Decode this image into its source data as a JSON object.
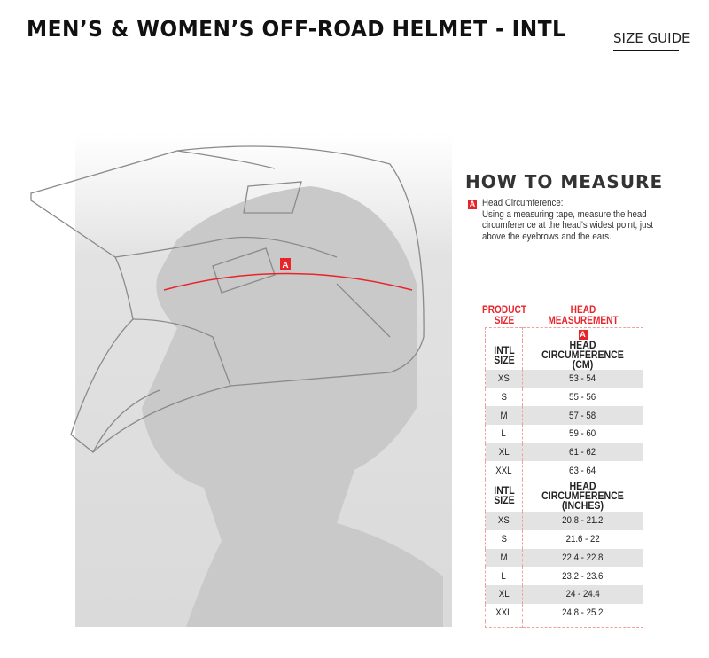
{
  "header": {
    "title": "MEN’S & WOMEN’S OFF-ROAD HELMET - INTL",
    "size_guide_link": "SIZE GUIDE"
  },
  "illustration": {
    "measure_label": "A"
  },
  "how_to_measure": {
    "heading": "HOW TO MEASURE",
    "badge": "A",
    "item_title": "Head Circumference:",
    "item_text": "Using a measuring tape, measure the head circumference at the head’s widest point, just above the eyebrows and the ears."
  },
  "accent_color": "#e8242b",
  "table": {
    "col_product": "PRODUCT SIZE",
    "col_measure": "HEAD MEASUREMENT",
    "measure_badge": "A",
    "sections": [
      {
        "size_header": "INTL SIZE",
        "measure_header": "HEAD CIRCUMFERENCE (CM)",
        "rows": [
          [
            "XS",
            "53 - 54"
          ],
          [
            "S",
            "55 - 56"
          ],
          [
            "M",
            "57 - 58"
          ],
          [
            "L",
            "59 - 60"
          ],
          [
            "XL",
            "61 - 62"
          ],
          [
            "XXL",
            "63 - 64"
          ]
        ]
      },
      {
        "size_header": "INTL SIZE",
        "measure_header": "HEAD CIRCUMFERENCE (INCHES)",
        "rows": [
          [
            "XS",
            "20.8 - 21.2"
          ],
          [
            "S",
            "21.6 - 22"
          ],
          [
            "M",
            "22.4 - 22.8"
          ],
          [
            "L",
            "23.2 - 23.6"
          ],
          [
            "XL",
            "24 - 24.4"
          ],
          [
            "XXL",
            "24.8 - 25.2"
          ]
        ]
      }
    ]
  }
}
